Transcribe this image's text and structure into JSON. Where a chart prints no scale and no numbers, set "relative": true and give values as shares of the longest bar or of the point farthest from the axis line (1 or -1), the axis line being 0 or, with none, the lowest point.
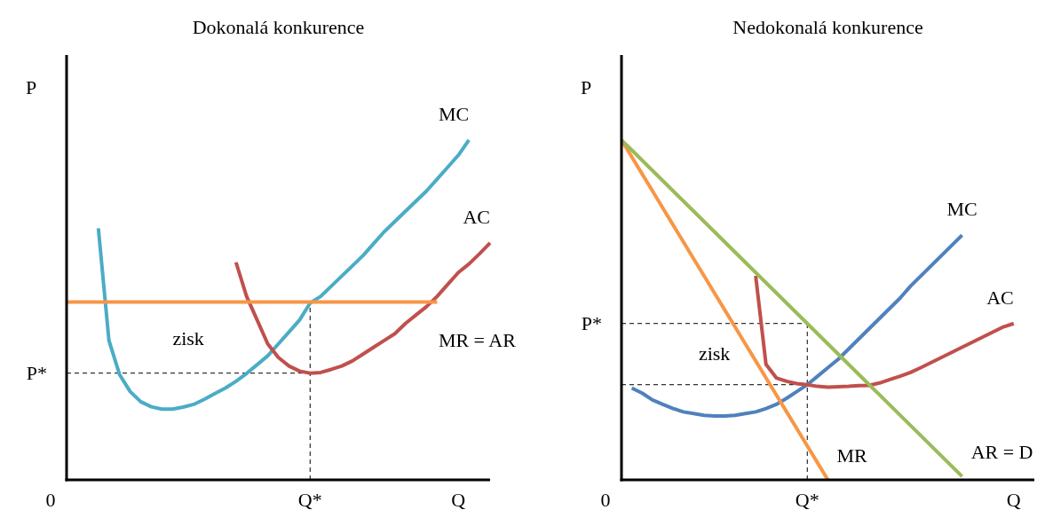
{
  "chart_data": [
    {
      "type": "line",
      "title": "Dokonalá konkurence",
      "ylabel": "P",
      "relative": true,
      "line_style": "solid",
      "categories": [
        null,
        null,
        null,
        null,
        null,
        null,
        null,
        null,
        null,
        null,
        null,
        null,
        null,
        null,
        null,
        null,
        null,
        null,
        null,
        null,
        null,
        null,
        null,
        "Q*",
        null,
        null,
        null,
        null,
        null,
        null,
        null,
        null,
        null,
        null,
        null,
        null,
        null,
        "Q",
        null,
        null,
        null
      ],
      "series": [
        {
          "name": "MC",
          "color": "#4bacc6",
          "values": [
            null,
            null,
            null,
            0.74,
            0.41,
            0.31,
            0.26,
            0.23,
            0.215,
            0.208,
            0.208,
            0.214,
            0.222,
            0.237,
            0.254,
            0.27,
            0.29,
            0.313,
            0.339,
            0.365,
            0.4,
            0.435,
            0.47,
            0.52,
            0.54,
            0.57,
            0.6,
            0.63,
            0.66,
            0.695,
            0.73,
            0.76,
            0.79,
            0.82,
            0.85,
            0.885,
            0.92,
            0.955,
            1,
            null,
            null
          ]
        },
        {
          "name": "AC",
          "color": "#c0504d",
          "values": [
            null,
            null,
            null,
            null,
            null,
            null,
            null,
            null,
            null,
            null,
            null,
            null,
            null,
            null,
            null,
            null,
            0.64,
            0.54,
            0.47,
            0.4,
            0.36,
            0.335,
            0.32,
            0.314,
            0.316,
            0.325,
            0.335,
            0.35,
            0.37,
            0.39,
            0.41,
            0.43,
            0.46,
            0.485,
            0.51,
            0.54,
            0.575,
            0.61,
            0.635,
            0.665,
            0.697
          ]
        },
        {
          "name": "MR = AR",
          "color": "#f79646",
          "values": [
            0.523,
            0.523,
            0.523,
            0.523,
            0.523,
            0.523,
            0.523,
            0.523,
            0.523,
            0.523,
            0.523,
            0.523,
            0.523,
            0.523,
            0.523,
            0.523,
            0.523,
            0.523,
            0.523,
            0.523,
            0.523,
            0.523,
            0.523,
            0.523,
            0.523,
            0.523,
            0.523,
            0.523,
            0.523,
            0.523,
            0.523,
            0.523,
            0.523,
            0.523,
            0.523,
            0.523,
            null,
            null,
            null,
            null,
            null
          ]
        }
      ],
      "ref_lines": [
        {
          "axis": "y",
          "value": 0.314,
          "label": "P*",
          "line_style": "dashed"
        },
        {
          "axis": "x",
          "value": "Q*",
          "label": null,
          "line_style": "dashed"
        }
      ],
      "annotations": [
        "zisk",
        "0"
      ]
    },
    {
      "type": "line",
      "title": "Nedokonalá konkurence",
      "ylabel": "P",
      "relative": true,
      "line_style": "solid",
      "categories": [
        null,
        null,
        null,
        null,
        null,
        null,
        null,
        null,
        null,
        null,
        null,
        null,
        null,
        null,
        null,
        null,
        null,
        null,
        "Q*",
        null,
        null,
        null,
        null,
        null,
        null,
        null,
        null,
        null,
        null,
        null,
        null,
        null,
        null,
        null,
        null,
        null,
        null,
        null,
        "Q",
        null,
        null
      ],
      "series": [
        {
          "name": "MC",
          "color": "#4f81bd",
          "values": [
            null,
            0.27,
            0.255,
            0.235,
            0.222,
            0.21,
            0.2,
            0.195,
            0.19,
            0.188,
            0.188,
            0.19,
            0.195,
            0.2,
            0.21,
            0.222,
            0.24,
            0.26,
            0.28,
            0.305,
            0.33,
            0.355,
            0.385,
            0.415,
            0.445,
            0.475,
            0.505,
            0.535,
            0.57,
            0.6,
            0.63,
            0.66,
            0.69,
            0.72,
            null,
            null,
            null,
            null,
            null,
            null,
            null
          ]
        },
        {
          "name": "AC",
          "color": "#c0504d",
          "values": [
            null,
            null,
            null,
            null,
            null,
            null,
            null,
            null,
            null,
            null,
            null,
            null,
            null,
            0.6,
            0.34,
            0.3,
            0.29,
            0.283,
            0.28,
            0.275,
            0.273,
            0.274,
            0.275,
            0.277,
            0.278,
            0.285,
            0.295,
            0.305,
            0.316,
            0.33,
            0.345,
            0.36,
            0.375,
            0.39,
            0.405,
            0.42,
            0.435,
            0.45,
            0.46,
            null,
            null
          ]
        },
        {
          "name": "MR",
          "color": "#f79646",
          "values": [
            1,
            0.95,
            0.9,
            0.85,
            0.8,
            0.75,
            0.7,
            0.65,
            0.6,
            0.55,
            0.5,
            0.45,
            0.4,
            0.35,
            0.3,
            0.25,
            0.2,
            0.15,
            0.1,
            0.05,
            0,
            null,
            null,
            null,
            null,
            null,
            null,
            null,
            null,
            null,
            null,
            null,
            null,
            null,
            null,
            null,
            null,
            null,
            null,
            null,
            null
          ]
        },
        {
          "name": "AR = D",
          "color": "#9bbb59",
          "values": [
            1,
            0.97,
            0.94,
            0.91,
            0.88,
            0.85,
            0.82,
            0.79,
            0.76,
            0.73,
            0.7,
            0.67,
            0.64,
            0.61,
            0.58,
            0.55,
            0.52,
            0.49,
            0.46,
            0.43,
            0.4,
            0.37,
            0.34,
            0.31,
            0.28,
            0.25,
            0.22,
            0.19,
            0.16,
            0.13,
            0.1,
            0.07,
            0.04,
            0.01,
            null,
            null,
            null,
            null,
            null,
            null,
            null
          ]
        }
      ],
      "ref_lines": [
        {
          "axis": "y",
          "value": 0.46,
          "label": "P*",
          "line_style": "dashed"
        },
        {
          "axis": "y",
          "value": 0.28,
          "label": null,
          "line_style": "dashed"
        },
        {
          "axis": "x",
          "value": "Q*",
          "label": null,
          "line_style": "dashed"
        }
      ],
      "annotations": [
        "zisk",
        "0"
      ]
    }
  ]
}
